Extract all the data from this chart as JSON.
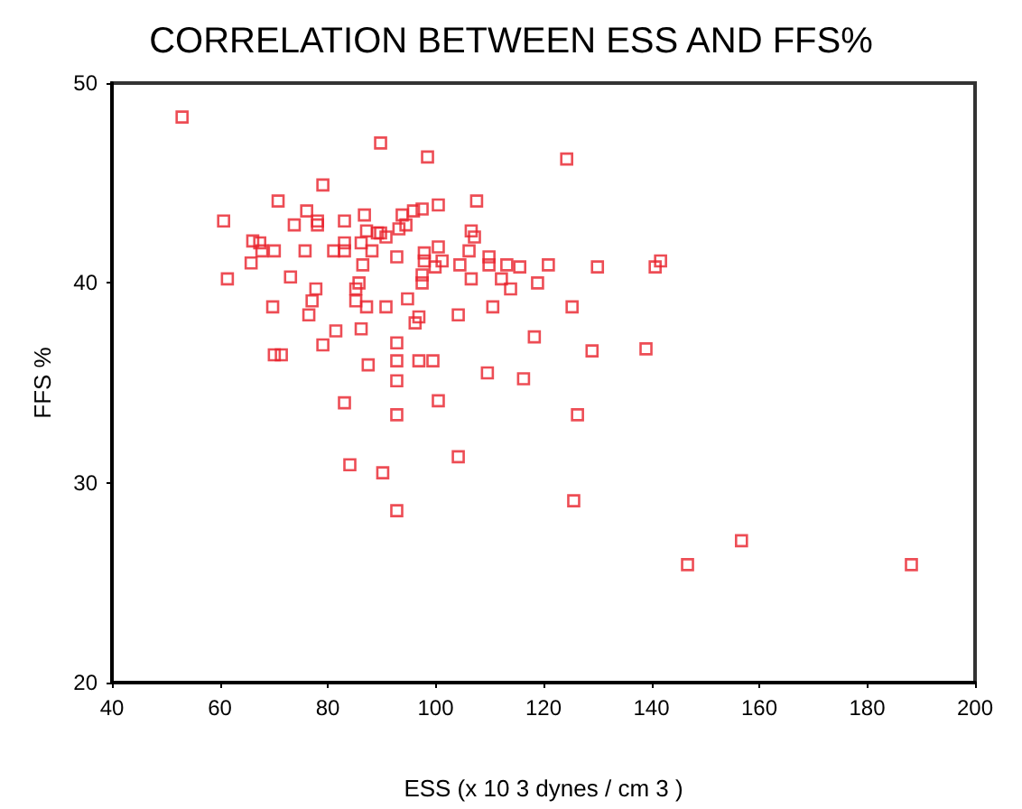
{
  "chart_data": {
    "type": "scatter",
    "title": "CORRELATION BETWEEN ESS AND FFS%",
    "xlabel": "ESS (x 10 3 dynes / cm 3 )",
    "ylabel": "FFS %",
    "x": [
      53.0,
      60.7,
      70.8,
      79.1,
      66.1,
      67.4,
      67.8,
      70.1,
      65.8,
      61.4,
      73.8,
      76.1,
      78.1,
      78.1,
      83.1,
      86.8,
      87.2,
      89.2,
      75.8,
      81.1,
      83.1,
      83.1,
      86.2,
      88.2,
      86.5,
      73.1,
      77.8,
      77.1,
      85.2,
      85.8,
      85.2,
      87.2,
      69.8,
      76.5,
      81.5,
      79.1,
      86.2,
      87.5,
      70.1,
      71.4,
      83.1,
      89.8,
      98.5,
      124.3,
      93.8,
      95.9,
      97.5,
      100.5,
      107.6,
      89.8,
      90.8,
      93.2,
      94.5,
      106.6,
      107.2,
      92.8,
      97.9,
      100.5,
      97.9,
      99.9,
      101.2,
      106.2,
      104.5,
      109.9,
      109.9,
      113.2,
      115.6,
      120.9,
      130.0,
      97.5,
      97.5,
      106.6,
      112.2,
      113.9,
      118.9,
      94.8,
      90.8,
      104.2,
      110.6,
      125.3,
      96.2,
      96.9,
      118.3,
      92.8,
      129.0,
      139.0,
      92.8,
      96.9,
      99.5,
      109.6,
      116.3,
      92.8,
      100.5,
      92.8,
      126.3,
      84.1,
      90.2,
      104.2,
      92.8,
      125.6,
      140.7,
      141.7,
      156.7,
      146.7,
      188.2
    ],
    "values": [
      48.3,
      43.1,
      44.1,
      44.9,
      42.1,
      42.0,
      41.6,
      41.6,
      41.0,
      40.2,
      42.9,
      43.6,
      43.1,
      42.9,
      43.1,
      43.4,
      42.6,
      42.5,
      41.6,
      41.6,
      42.0,
      41.6,
      42.0,
      41.6,
      40.9,
      40.3,
      39.7,
      39.1,
      39.7,
      40.0,
      39.1,
      38.8,
      38.8,
      38.4,
      37.6,
      36.9,
      37.7,
      35.9,
      36.4,
      36.4,
      34.0,
      47.0,
      46.3,
      46.2,
      43.4,
      43.6,
      43.7,
      43.9,
      44.1,
      42.5,
      42.3,
      42.7,
      42.9,
      42.6,
      42.3,
      41.3,
      41.5,
      41.8,
      41.1,
      40.8,
      41.1,
      41.6,
      40.9,
      41.3,
      40.9,
      40.9,
      40.8,
      40.9,
      40.8,
      40.4,
      40.0,
      40.2,
      40.2,
      39.7,
      40.0,
      39.2,
      38.8,
      38.4,
      38.8,
      38.8,
      38.0,
      38.3,
      37.3,
      37.0,
      36.6,
      36.7,
      36.1,
      36.1,
      36.1,
      35.5,
      35.2,
      35.1,
      34.1,
      33.4,
      33.4,
      30.9,
      30.5,
      31.3,
      28.6,
      29.1,
      40.8,
      41.1,
      27.1,
      25.9,
      25.9
    ],
    "color": "#e8202a",
    "marker": "square",
    "xlim": [
      40,
      200
    ],
    "xticks": [
      40,
      60,
      80,
      100,
      120,
      140,
      160,
      180,
      200
    ],
    "ylim": [
      20,
      50
    ],
    "yticks": [
      20,
      30,
      40,
      50
    ]
  }
}
